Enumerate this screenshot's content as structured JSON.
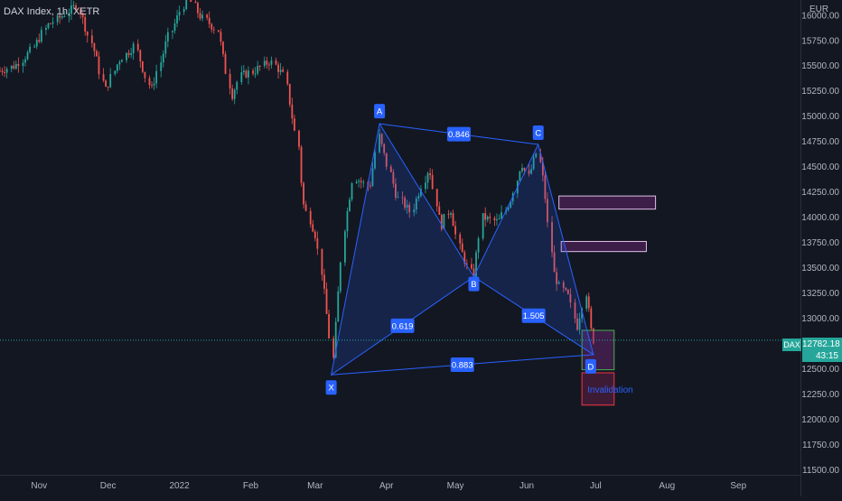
{
  "header": {
    "symbol": "DAX Index, 1h, XETR",
    "currency": "EUR"
  },
  "last_price": {
    "ticker": "DAX",
    "value": "12782.18",
    "countdown": "43:15"
  },
  "chart_data": {
    "type": "candlestick",
    "title": "DAX Index, 1h, XETR",
    "y_unit": "EUR",
    "y_ticks": [
      11500,
      11750,
      12000,
      12250,
      12500,
      12750,
      13000,
      13250,
      13500,
      13750,
      14000,
      14250,
      14500,
      14750,
      15000,
      15250,
      15500,
      15750,
      16000
    ],
    "y_tick_labels": [
      "11500.00",
      "11750.00",
      "12000.00",
      "12250.00",
      "12500.00",
      "12750.00",
      "13000.00",
      "13250.00",
      "13500.00",
      "13750.00",
      "14000.00",
      "14250.00",
      "14500.00",
      "14750.00",
      "15000.00",
      "15250.00",
      "15500.00",
      "15750.00",
      "16000.00"
    ],
    "x_ticks": [
      "Nov",
      "Dec",
      "2022",
      "Feb",
      "Mar",
      "Apr",
      "May",
      "Jun",
      "Jul",
      "Aug",
      "Sep"
    ],
    "x_tick_dates": [
      "2021-11-01",
      "2021-12-01",
      "2022-01-01",
      "2022-02-01",
      "2022-03-01",
      "2022-04-01",
      "2022-05-01",
      "2022-06-01",
      "2022-07-01",
      "2022-08-01",
      "2022-09-01"
    ],
    "ylim": [
      11450,
      16150
    ],
    "xlim": [
      "2021-10-15",
      "2022-09-28"
    ],
    "price_path": [
      [
        "2021-10-15",
        15450
      ],
      [
        "2021-10-22",
        15500
      ],
      [
        "2021-10-29",
        15650
      ],
      [
        "2021-11-05",
        15900
      ],
      [
        "2021-11-12",
        16000
      ],
      [
        "2021-11-18",
        16100
      ],
      [
        "2021-11-26",
        15600
      ],
      [
        "2021-11-30",
        15250
      ],
      [
        "2021-12-06",
        15550
      ],
      [
        "2021-12-13",
        15700
      ],
      [
        "2021-12-20",
        15250
      ],
      [
        "2021-12-27",
        15750
      ],
      [
        "2022-01-05",
        16200
      ],
      [
        "2022-01-10",
        16000
      ],
      [
        "2022-01-18",
        15850
      ],
      [
        "2022-01-24",
        15200
      ],
      [
        "2022-01-28",
        15400
      ],
      [
        "2022-02-03",
        15450
      ],
      [
        "2022-02-10",
        15550
      ],
      [
        "2022-02-16",
        15400
      ],
      [
        "2022-02-22",
        14700
      ],
      [
        "2022-02-24",
        14150
      ],
      [
        "2022-03-02",
        13800
      ],
      [
        "2022-03-07",
        12950
      ],
      [
        "2022-03-09",
        12600
      ],
      [
        "2022-03-14",
        13900
      ],
      [
        "2022-03-18",
        14400
      ],
      [
        "2022-03-25",
        14300
      ],
      [
        "2022-03-29",
        14800
      ],
      [
        "2022-04-06",
        14200
      ],
      [
        "2022-04-12",
        14050
      ],
      [
        "2022-04-20",
        14500
      ],
      [
        "2022-04-25",
        13900
      ],
      [
        "2022-04-29",
        14100
      ],
      [
        "2022-05-03",
        13700
      ],
      [
        "2022-05-09",
        13400
      ],
      [
        "2022-05-13",
        14000
      ],
      [
        "2022-05-20",
        13950
      ],
      [
        "2022-05-26",
        14200
      ],
      [
        "2022-05-30",
        14550
      ],
      [
        "2022-06-02",
        14400
      ],
      [
        "2022-06-06",
        14650
      ],
      [
        "2022-06-09",
        14300
      ],
      [
        "2022-06-13",
        13450
      ],
      [
        "2022-06-16",
        13300
      ],
      [
        "2022-06-20",
        13200
      ],
      [
        "2022-06-23",
        12900
      ],
      [
        "2022-06-27",
        13250
      ],
      [
        "2022-06-30",
        12800
      ],
      [
        "2022-07-01",
        12780
      ]
    ],
    "harmonic_pattern": {
      "points": [
        {
          "label": "X",
          "date": "2022-03-08",
          "price": 12440
        },
        {
          "label": "A",
          "date": "2022-03-29",
          "price": 14925
        },
        {
          "label": "B",
          "date": "2022-05-09",
          "price": 13410
        },
        {
          "label": "C",
          "date": "2022-06-06",
          "price": 14720
        },
        {
          "label": "D",
          "date": "2022-06-30",
          "price": 12640
        }
      ],
      "ratios": [
        {
          "value": "0.846",
          "between": "A-C"
        },
        {
          "value": "0.619",
          "between": "X-B"
        },
        {
          "value": "1.505",
          "between": "B-D"
        },
        {
          "value": "0.883",
          "between": "X-D"
        }
      ]
    },
    "zones": [
      {
        "name": "target-zone-1",
        "from": "2022-06-15",
        "to": "2022-07-27",
        "low": 14080,
        "high": 14210,
        "color": "#e1bee7"
      },
      {
        "name": "target-zone-2",
        "from": "2022-06-16",
        "to": "2022-07-23",
        "low": 13660,
        "high": 13760,
        "color": "#e1bee7"
      },
      {
        "name": "pattern-completion-zone",
        "from": "2022-06-25",
        "to": "2022-07-09",
        "low": 12490,
        "high": 12880,
        "color": "#4caf50"
      },
      {
        "name": "invalidation-zone",
        "from": "2022-06-25",
        "to": "2022-07-09",
        "low": 12140,
        "high": 12460,
        "color": "#f23645",
        "label": "Invalidation"
      }
    ],
    "last_price": 12782.18,
    "colors": {
      "up": "#26a69a",
      "down": "#ef5350",
      "pattern": "#2962ff",
      "background": "#131722"
    }
  }
}
